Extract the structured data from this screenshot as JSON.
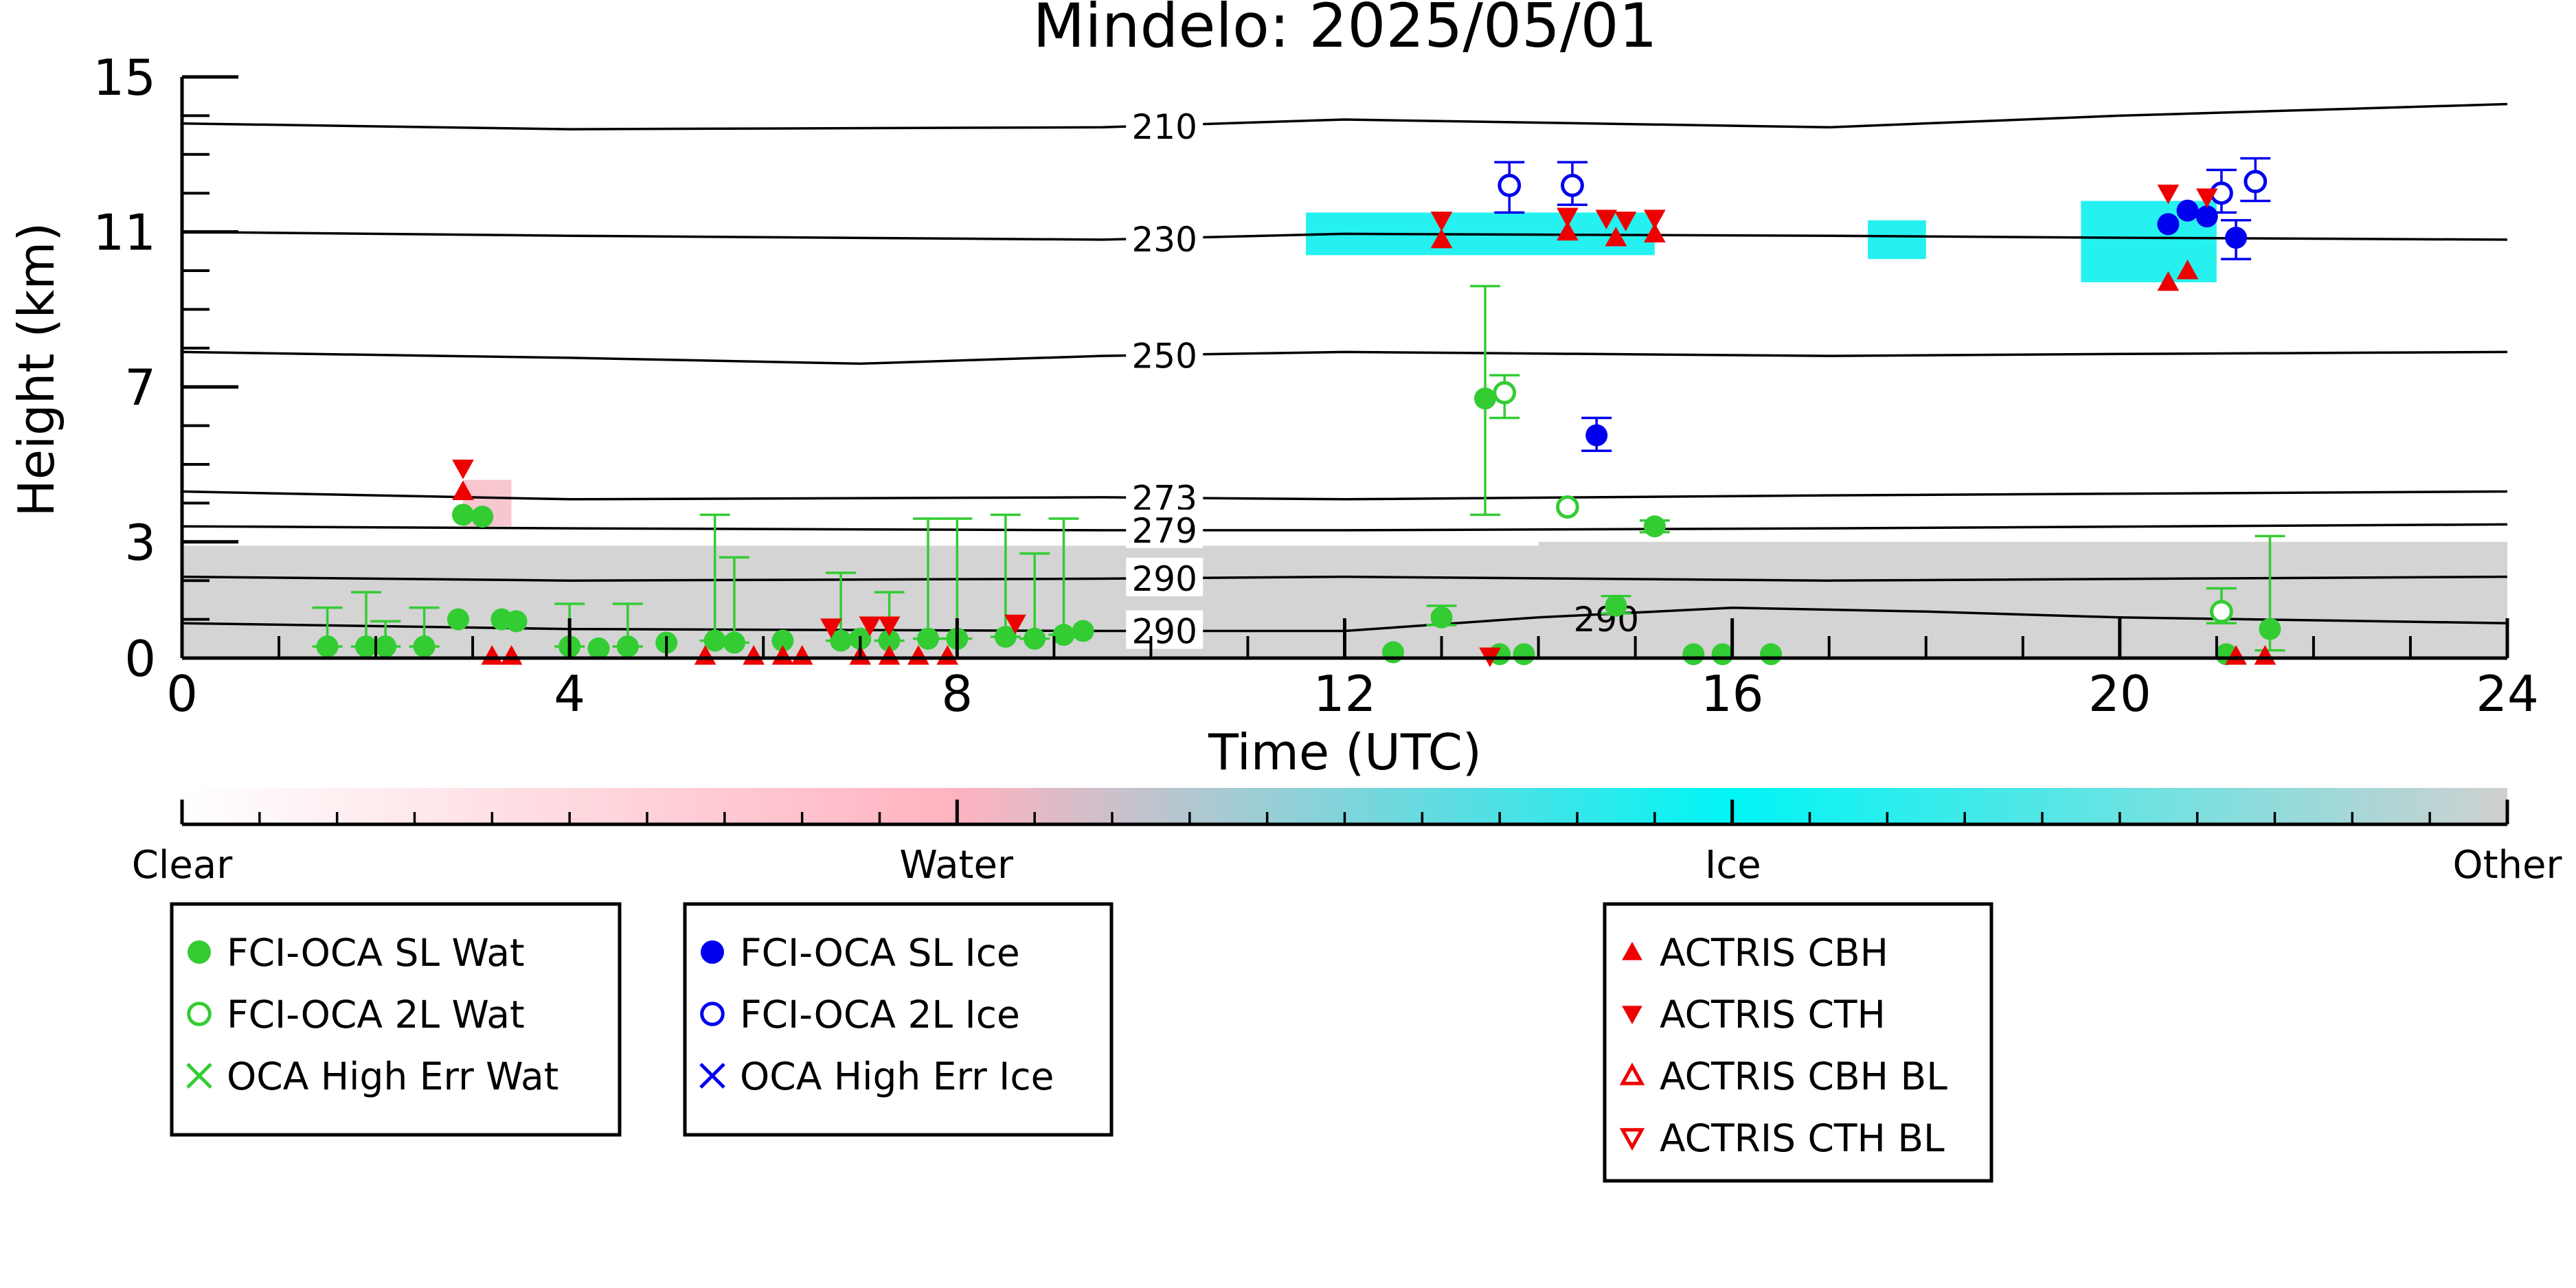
{
  "chart_data": {
    "type": "scatter",
    "title": "Mindelo: 2025/05/01",
    "xlabel": "Time (UTC)",
    "ylabel": "Height (km)",
    "xlim": [
      0,
      24
    ],
    "ylim": [
      0,
      15
    ],
    "x_ticks": [
      0,
      4,
      8,
      12,
      16,
      20,
      24
    ],
    "x_tick_labels": [
      "0",
      "4",
      "8",
      "12",
      "16",
      "20",
      "24"
    ],
    "y_ticks": [
      0,
      3,
      7,
      11,
      15
    ],
    "y_tick_labels": [
      "0",
      "3",
      "7",
      "11",
      "15"
    ],
    "grid": false,
    "colors": {
      "water": "#33cc33",
      "ice": "#0000ee",
      "actris": "#ee0000",
      "ice_mask": "#00eeee",
      "other_mask": "#d4d4d4"
    },
    "isotherms": [
      {
        "label": "210",
        "label_x": 9.8,
        "points": [
          [
            0,
            13.8
          ],
          [
            4,
            13.65
          ],
          [
            9.5,
            13.7
          ],
          [
            12,
            13.9
          ],
          [
            17,
            13.7
          ],
          [
            20,
            14.0
          ],
          [
            24,
            14.3
          ]
        ]
      },
      {
        "label": "230",
        "label_x": 9.8,
        "points": [
          [
            0,
            11.0
          ],
          [
            4,
            10.9
          ],
          [
            9.5,
            10.8
          ],
          [
            12,
            10.95
          ],
          [
            17,
            10.9
          ],
          [
            20,
            10.85
          ],
          [
            24,
            10.8
          ]
        ]
      },
      {
        "label": "250",
        "label_x": 9.8,
        "points": [
          [
            0,
            7.9
          ],
          [
            4,
            7.75
          ],
          [
            7,
            7.6
          ],
          [
            9.5,
            7.8
          ],
          [
            12,
            7.9
          ],
          [
            17,
            7.8
          ],
          [
            20,
            7.85
          ],
          [
            24,
            7.9
          ]
        ]
      },
      {
        "label": "273",
        "label_x": 9.8,
        "points": [
          [
            0,
            4.3
          ],
          [
            4,
            4.1
          ],
          [
            9.5,
            4.15
          ],
          [
            12,
            4.1
          ],
          [
            17,
            4.2
          ],
          [
            24,
            4.3
          ]
        ]
      },
      {
        "label": "279",
        "label_x": 9.8,
        "points": [
          [
            0,
            3.4
          ],
          [
            4,
            3.35
          ],
          [
            9.5,
            3.3
          ],
          [
            12,
            3.3
          ],
          [
            17,
            3.35
          ],
          [
            24,
            3.45
          ]
        ]
      },
      {
        "label": "290",
        "label_x": 9.8,
        "points": [
          [
            0,
            2.1
          ],
          [
            4,
            2.0
          ],
          [
            9.5,
            2.05
          ],
          [
            12,
            2.1
          ],
          [
            17,
            2.0
          ],
          [
            24,
            2.1
          ]
        ]
      },
      {
        "label": "290",
        "label_x": 9.8,
        "points": [
          [
            0,
            0.9
          ],
          [
            4,
            0.75
          ],
          [
            9.5,
            0.7
          ],
          [
            12,
            0.7
          ],
          [
            14,
            1.05
          ],
          [
            16,
            1.3
          ],
          [
            18,
            1.2
          ],
          [
            20,
            1.05
          ],
          [
            24,
            0.9
          ]
        ]
      }
    ],
    "isotherm_extra_labels": [
      {
        "label": "290",
        "x": 14.7,
        "y": 1.05
      }
    ],
    "mask_columns": [
      {
        "x0": 0,
        "x1": 9.5,
        "y0": 0,
        "y1": 2.9,
        "color": "other"
      },
      {
        "x0": 9.5,
        "x1": 14.0,
        "y0": 0,
        "y1": 2.9,
        "color": "other"
      },
      {
        "x0": 14.0,
        "x1": 24,
        "y0": 0,
        "y1": 3.0,
        "color": "other"
      },
      {
        "x0": 2.9,
        "x1": 3.4,
        "y0": 3.4,
        "y1": 4.6,
        "color": "water_pink"
      },
      {
        "x0": 11.6,
        "x1": 15.2,
        "y0": 10.4,
        "y1": 11.5,
        "color": "ice"
      },
      {
        "x0": 17.4,
        "x1": 18.0,
        "y0": 10.3,
        "y1": 11.3,
        "color": "ice"
      },
      {
        "x0": 19.6,
        "x1": 21.0,
        "y0": 9.7,
        "y1": 11.8,
        "color": "ice"
      }
    ],
    "series": [
      {
        "name": "FCI-OCA SL Wat",
        "marker": "filled-circle",
        "color": "#33cc33",
        "points": [
          {
            "x": 1.5,
            "y": 0.3,
            "err_lo": 0.3,
            "err_hi": 1.3
          },
          {
            "x": 1.9,
            "y": 0.3,
            "err_lo": 0.3,
            "err_hi": 1.7
          },
          {
            "x": 2.1,
            "y": 0.3,
            "err_lo": 0.3,
            "err_hi": 0.95
          },
          {
            "x": 2.5,
            "y": 0.3,
            "err_lo": 0.3,
            "err_hi": 1.3
          },
          {
            "x": 2.85,
            "y": 1.0
          },
          {
            "x": 2.9,
            "y": 3.7
          },
          {
            "x": 3.1,
            "y": 3.65
          },
          {
            "x": 3.3,
            "y": 1.0
          },
          {
            "x": 3.45,
            "y": 0.95
          },
          {
            "x": 4.0,
            "y": 0.3,
            "err_lo": 0.3,
            "err_hi": 1.4
          },
          {
            "x": 4.3,
            "y": 0.25
          },
          {
            "x": 4.6,
            "y": 0.3,
            "err_lo": 0.3,
            "err_hi": 1.4
          },
          {
            "x": 5.0,
            "y": 0.4
          },
          {
            "x": 5.5,
            "y": 0.45,
            "err_lo": 0.45,
            "err_hi": 3.7
          },
          {
            "x": 5.7,
            "y": 0.4,
            "err_lo": 0.4,
            "err_hi": 2.6
          },
          {
            "x": 6.2,
            "y": 0.45
          },
          {
            "x": 6.8,
            "y": 0.45,
            "err_lo": 0.45,
            "err_hi": 2.2
          },
          {
            "x": 7.0,
            "y": 0.5
          },
          {
            "x": 7.3,
            "y": 0.45,
            "err_lo": 0.45,
            "err_hi": 1.7
          },
          {
            "x": 7.7,
            "y": 0.5,
            "err_lo": 0.5,
            "err_hi": 3.6
          },
          {
            "x": 8.0,
            "y": 0.5,
            "err_lo": 0.5,
            "err_hi": 3.6
          },
          {
            "x": 8.5,
            "y": 0.55,
            "err_lo": 0.55,
            "err_hi": 3.7
          },
          {
            "x": 8.8,
            "y": 0.5,
            "err_lo": 0.5,
            "err_hi": 2.7
          },
          {
            "x": 9.1,
            "y": 0.6,
            "err_lo": 0.6,
            "err_hi": 3.6
          },
          {
            "x": 9.3,
            "y": 0.7
          },
          {
            "x": 12.5,
            "y": 0.15
          },
          {
            "x": 13.0,
            "y": 1.05,
            "err_lo": 0.85,
            "err_hi": 1.35
          },
          {
            "x": 13.45,
            "y": 6.7,
            "err_lo": 3.7,
            "err_hi": 9.6
          },
          {
            "x": 13.6,
            "y": 0.1
          },
          {
            "x": 13.85,
            "y": 0.1
          },
          {
            "x": 14.8,
            "y": 1.35,
            "err_lo": 1.15,
            "err_hi": 1.6
          },
          {
            "x": 15.2,
            "y": 3.4,
            "err_lo": 3.25,
            "err_hi": 3.55
          },
          {
            "x": 15.6,
            "y": 0.1
          },
          {
            "x": 15.9,
            "y": 0.1
          },
          {
            "x": 16.4,
            "y": 0.1
          },
          {
            "x": 21.55,
            "y": 0.75,
            "err_lo": 0.2,
            "err_hi": 3.15
          },
          {
            "x": 21.1,
            "y": 0.1
          }
        ]
      },
      {
        "name": "FCI-OCA 2L Wat",
        "marker": "open-circle",
        "color": "#33cc33",
        "points": [
          {
            "x": 13.65,
            "y": 6.85,
            "err_lo": 6.2,
            "err_hi": 7.3
          },
          {
            "x": 14.3,
            "y": 3.9
          },
          {
            "x": 21.05,
            "y": 1.2,
            "err_lo": 0.9,
            "err_hi": 1.8
          }
        ]
      },
      {
        "name": "OCA High Err Wat",
        "marker": "x",
        "color": "#33cc33",
        "points": []
      },
      {
        "name": "FCI-OCA SL Ice",
        "marker": "filled-circle",
        "color": "#0000ee",
        "points": [
          {
            "x": 14.6,
            "y": 5.75,
            "err_lo": 5.35,
            "err_hi": 6.2
          },
          {
            "x": 20.5,
            "y": 11.2
          },
          {
            "x": 20.7,
            "y": 11.55
          },
          {
            "x": 20.9,
            "y": 11.4
          },
          {
            "x": 21.2,
            "y": 10.85,
            "err_lo": 10.3,
            "err_hi": 11.3
          }
        ]
      },
      {
        "name": "FCI-OCA 2L Ice",
        "marker": "open-circle",
        "color": "#0000ee",
        "points": [
          {
            "x": 13.7,
            "y": 12.2,
            "err_lo": 11.5,
            "err_hi": 12.8
          },
          {
            "x": 14.35,
            "y": 12.2,
            "err_lo": 11.7,
            "err_hi": 12.8
          },
          {
            "x": 21.05,
            "y": 12.0,
            "err_lo": 11.5,
            "err_hi": 12.6
          },
          {
            "x": 21.4,
            "y": 12.3,
            "err_lo": 11.8,
            "err_hi": 12.9
          }
        ]
      },
      {
        "name": "OCA High Err Ice",
        "marker": "x",
        "color": "#0000ee",
        "points": []
      },
      {
        "name": "ACTRIS CBH",
        "marker": "filled-triangle-up",
        "color": "#ee0000",
        "points": [
          {
            "x": 2.9,
            "y": 4.3
          },
          {
            "x": 3.2,
            "y": 0.05
          },
          {
            "x": 3.4,
            "y": 0.05
          },
          {
            "x": 5.4,
            "y": 0.05
          },
          {
            "x": 5.9,
            "y": 0.05
          },
          {
            "x": 6.2,
            "y": 0.05
          },
          {
            "x": 6.4,
            "y": 0.05
          },
          {
            "x": 7.0,
            "y": 0.05
          },
          {
            "x": 7.3,
            "y": 0.05
          },
          {
            "x": 7.6,
            "y": 0.05
          },
          {
            "x": 7.9,
            "y": 0.05
          },
          {
            "x": 13.0,
            "y": 10.8
          },
          {
            "x": 14.3,
            "y": 11.0
          },
          {
            "x": 14.8,
            "y": 10.85
          },
          {
            "x": 15.2,
            "y": 10.95
          },
          {
            "x": 20.5,
            "y": 9.7
          },
          {
            "x": 20.7,
            "y": 10.0
          },
          {
            "x": 21.2,
            "y": 0.05
          },
          {
            "x": 21.5,
            "y": 0.05
          }
        ]
      },
      {
        "name": "ACTRIS CTH",
        "marker": "filled-triangle-down",
        "color": "#ee0000",
        "points": [
          {
            "x": 2.9,
            "y": 4.9
          },
          {
            "x": 6.7,
            "y": 0.8
          },
          {
            "x": 7.1,
            "y": 0.85
          },
          {
            "x": 7.3,
            "y": 0.85
          },
          {
            "x": 8.6,
            "y": 0.9
          },
          {
            "x": 13.0,
            "y": 11.3
          },
          {
            "x": 14.3,
            "y": 11.4
          },
          {
            "x": 14.7,
            "y": 11.35
          },
          {
            "x": 14.9,
            "y": 11.3
          },
          {
            "x": 15.2,
            "y": 11.35
          },
          {
            "x": 13.5,
            "y": 0.05
          },
          {
            "x": 20.5,
            "y": 12.0
          },
          {
            "x": 20.9,
            "y": 11.9
          }
        ]
      },
      {
        "name": "ACTRIS CBH BL",
        "marker": "open-triangle-up",
        "color": "#ee0000",
        "points": []
      },
      {
        "name": "ACTRIS CTH BL",
        "marker": "open-triangle-down",
        "color": "#ee0000",
        "points": []
      }
    ],
    "colorbar": {
      "labels": [
        {
          "text": "Clear",
          "pos": 0.0
        },
        {
          "text": "Water",
          "pos": 0.333
        },
        {
          "text": "Ice",
          "pos": 0.667
        },
        {
          "text": "Other",
          "pos": 1.0
        }
      ],
      "stops": [
        {
          "pos": 0.0,
          "color": "#ffffff"
        },
        {
          "pos": 0.333,
          "color": "#ffb3c0"
        },
        {
          "pos": 0.667,
          "color": "#00f5f5"
        },
        {
          "pos": 1.0,
          "color": "#d0d0d0"
        }
      ]
    },
    "legends": [
      {
        "entries": [
          "FCI-OCA SL Wat",
          "FCI-OCA 2L Wat",
          "OCA High Err Wat"
        ]
      },
      {
        "entries": [
          "FCI-OCA SL Ice",
          "FCI-OCA 2L Ice",
          "OCA High Err Ice"
        ]
      },
      {
        "entries": [
          "ACTRIS CBH",
          "ACTRIS CTH",
          "ACTRIS CBH BL",
          "ACTRIS CTH BL"
        ]
      }
    ]
  }
}
